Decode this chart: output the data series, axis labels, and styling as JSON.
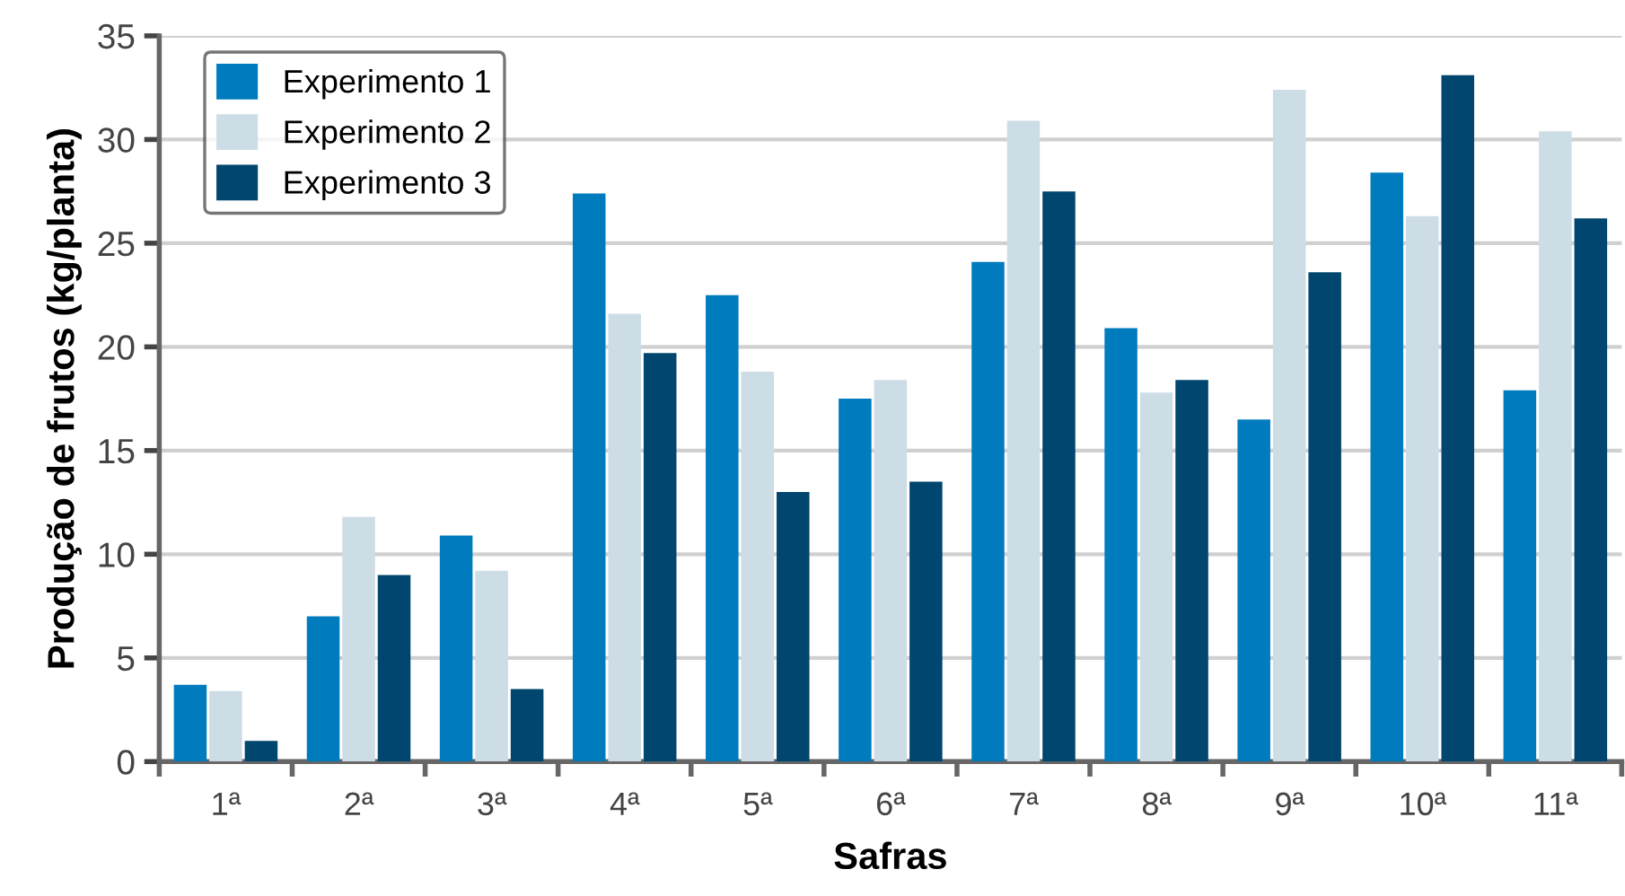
{
  "chart_data": {
    "type": "bar",
    "xlabel": "Safras",
    "ylabel": "Produção de frutos (kg/planta)",
    "categories": [
      "1ª",
      "2ª",
      "3ª",
      "4ª",
      "5ª",
      "6ª",
      "7ª",
      "8ª",
      "9ª",
      "10ª",
      "11ª"
    ],
    "series": [
      {
        "name": "Experimento 1",
        "color": "#007bbd",
        "values": [
          3.7,
          7.0,
          10.9,
          27.4,
          22.5,
          17.5,
          24.1,
          20.9,
          16.5,
          28.4,
          17.9
        ]
      },
      {
        "name": "Experimento 2",
        "color": "#cddde6",
        "values": [
          3.4,
          11.8,
          9.2,
          21.6,
          18.8,
          18.4,
          30.9,
          17.8,
          32.4,
          26.3,
          30.4
        ]
      },
      {
        "name": "Experimento 3",
        "color": "#00466e",
        "values": [
          1.0,
          9.0,
          3.5,
          19.7,
          13.0,
          13.5,
          27.5,
          18.4,
          23.6,
          33.1,
          26.2
        ]
      }
    ],
    "ylim": [
      0,
      35
    ],
    "yticks": [
      0,
      5,
      10,
      15,
      20,
      25,
      30,
      35
    ],
    "grid": "y",
    "legend": "top left"
  }
}
